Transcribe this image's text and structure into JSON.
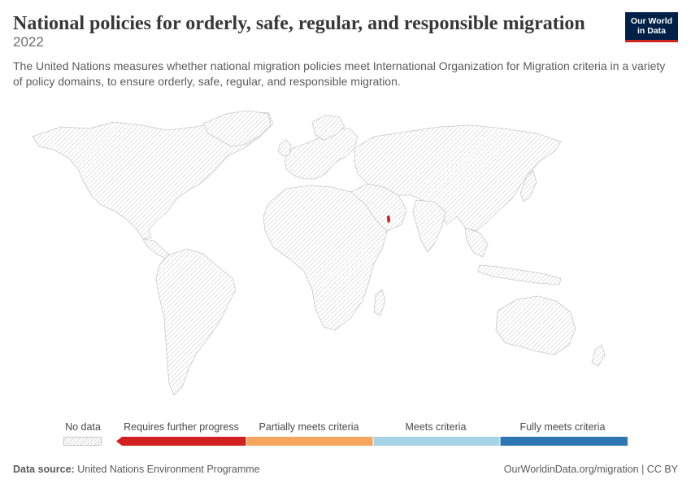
{
  "header": {
    "title": "National policies for orderly, safe, regular, and responsible migration",
    "year": "2022",
    "description": "The United Nations measures whether national migration policies meet International Organization for Migration criteria in a variety of policy domains, to ensure orderly, safe, regular, and responsible migration."
  },
  "logo": {
    "line1": "Our World",
    "line2": "in Data"
  },
  "legend": {
    "no_data": "No data",
    "categories": [
      {
        "label": "Requires further progress",
        "color": "#d21f1f"
      },
      {
        "label": "Partially meets criteria",
        "color": "#f6a55c"
      },
      {
        "label": "Meets criteria",
        "color": "#a6d3e6"
      },
      {
        "label": "Fully meets criteria",
        "color": "#2f77b4"
      }
    ]
  },
  "map": {
    "highlighted": [
      {
        "region": "Qatar",
        "category": "Requires further progress"
      }
    ],
    "no_data_color": "#e6e6e6"
  },
  "footer": {
    "source_label": "Data source:",
    "source_value": "United Nations Environment Programme",
    "url": "OurWorldinData.org/migration | CC BY"
  }
}
